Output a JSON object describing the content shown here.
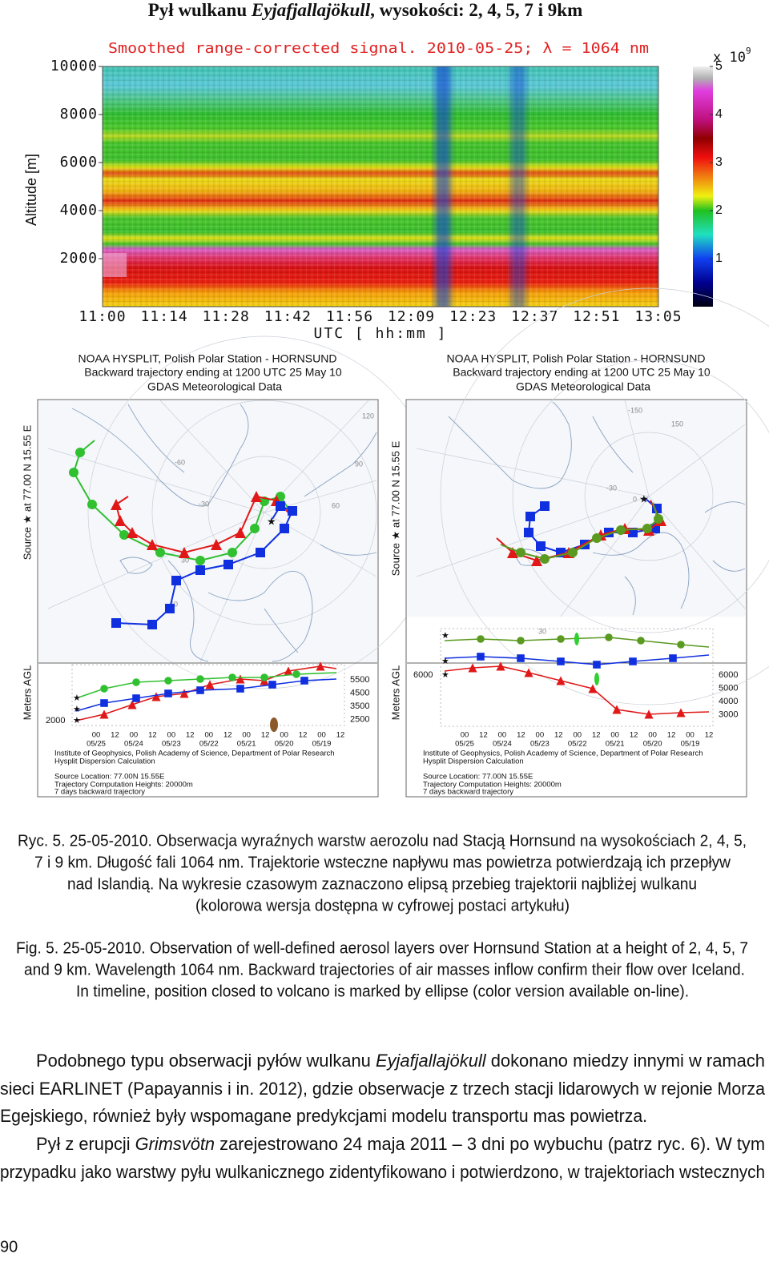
{
  "title": {
    "prefix": "Pył wulkanu ",
    "italic": "Eyjafjallajökull",
    "suffix": ", wysokości: 2, 4, 5, 7 i 9km"
  },
  "lidar": {
    "title": "Smoothed range-corrected signal.  2010-05-25; λ = 1064 nm",
    "y_label": "Altitude [m]",
    "x_label": "UTC [ hh:mm ]",
    "ylim": [
      0,
      10000
    ],
    "yticks": [
      2000,
      4000,
      6000,
      8000,
      10000
    ],
    "x_categories": [
      "11:00",
      "11:14",
      "11:28",
      "11:42",
      "11:56",
      "12:09",
      "12:23",
      "12:37",
      "12:51",
      "13:05"
    ],
    "colorbar": {
      "label": "x 10",
      "exponent": "9",
      "lim": [
        0,
        5
      ],
      "ticks": [
        1,
        2,
        3,
        4,
        5
      ]
    }
  },
  "panels": [
    {
      "header": [
        "NOAA HYSPLIT, Polish Polar Station - HORNSUND",
        "Backward trajectory ending at 1200 UTC 25 May 10",
        "GDAS Meteorological Data"
      ],
      "side_label": "Source ★ at 77.00 N 15.55 E",
      "agl_label": "Meters AGL",
      "map_labels": [
        "120",
        "90",
        "60",
        "-60",
        "-30",
        "30",
        "60"
      ],
      "agl_left": [
        "2000"
      ],
      "agl_right": [
        "5500",
        "4500",
        "3500",
        "2500"
      ],
      "hours": [
        "00",
        "12",
        "00",
        "12",
        "00",
        "12",
        "00",
        "12",
        "00",
        "12",
        "00",
        "12",
        "00",
        "12"
      ],
      "dates": [
        "05/25",
        "05/24",
        "05/23",
        "05/22",
        "05/21",
        "05/20",
        "05/19"
      ],
      "footer": [
        "Institute of Geophysics, Polish Academy of Science, Department of Polar Research",
        "Hysplit Dispersion Calculation",
        "Source Location: 77.00N 15.55E",
        "Trajectory Computation Heights: 20000m",
        "7 days backward trajectory"
      ]
    },
    {
      "header": [
        "NOAA HYSPLIT, Polish Polar Station - HORNSUND",
        "Backward trajectory ending at 1200 UTC 25 May 10",
        "GDAS Meteorological Data"
      ],
      "side_label": "Source ★ at 77.00 N 15.55 E",
      "agl_label": "Meters AGL",
      "map_labels": [
        "-150",
        "150",
        "-30",
        "0",
        "30"
      ],
      "agl_left": [
        "6000"
      ],
      "agl_right": [
        "6000",
        "5000",
        "4000",
        "3000"
      ],
      "hours": [
        "00",
        "12",
        "00",
        "12",
        "00",
        "12",
        "00",
        "12",
        "00",
        "12",
        "00",
        "12",
        "00",
        "12"
      ],
      "dates": [
        "05/25",
        "05/24",
        "05/23",
        "05/22",
        "05/21",
        "05/20",
        "05/19"
      ],
      "footer": [
        "Institute of Geophysics, Polish Academy of Science, Department of Polar Research",
        "Hysplit Dispersion Calculation",
        "Source Location: 77.00N 15.55E",
        "Trajectory Computation Heights: 20000m",
        "7 days backward trajectory"
      ]
    }
  ],
  "caption_pl": [
    "Ryc. 5. 25-05-2010. Obserwacja wyraźnych warstw aerozolu nad Stacją Hornsund na wysokościach 2, 4, 5,",
    "7 i 9 km. Długość fali 1064 nm. Trajektorie wsteczne napływu mas powietrza potwierdzają ich przepływ",
    "nad Islandią. Na wykresie czasowym zaznaczono elipsą przebieg trajektorii najbliżej wulkanu",
    "(kolorowa wersja dostępna w cyfrowej postaci artykułu)"
  ],
  "caption_en": [
    "Fig. 5. 25-05-2010. Observation of well-defined aerosol layers over Hornsund Station at a height of 2, 4, 5, 7",
    "and 9 km. Wavelength 1064 nm. Backward trajectories of air masses inflow confirm their flow over Iceland.",
    "In timeline, position closed to volcano is marked by ellipse (color version available on-line)."
  ],
  "body": [
    [
      [
        "Podobnego typu obserwacji pyłów wulkanu ",
        "Eyjafjallajökull",
        " dokonano miedzy innymi w ramach"
      ],
      [
        "sieci EARLINET (Papayannis i in. 2012), gdzie obserwacje z trzech stacji lidarowych w rejonie Morza"
      ],
      [
        "Egejskiego, również były wspomagane predykcjami modelu transportu mas powietrza."
      ]
    ],
    [
      [
        "Pył z erupcji ",
        "Grimsvötn",
        " zarejestrowano 24 maja 2011 – 3 dni po wybuchu (patrz ryc. 6). W tym"
      ],
      [
        "przypadku jako warstwy pyłu wulkanicznego zidentyfikowano i potwierdzono, w trajektoriach wstecznych"
      ]
    ]
  ],
  "page_number": "90"
}
